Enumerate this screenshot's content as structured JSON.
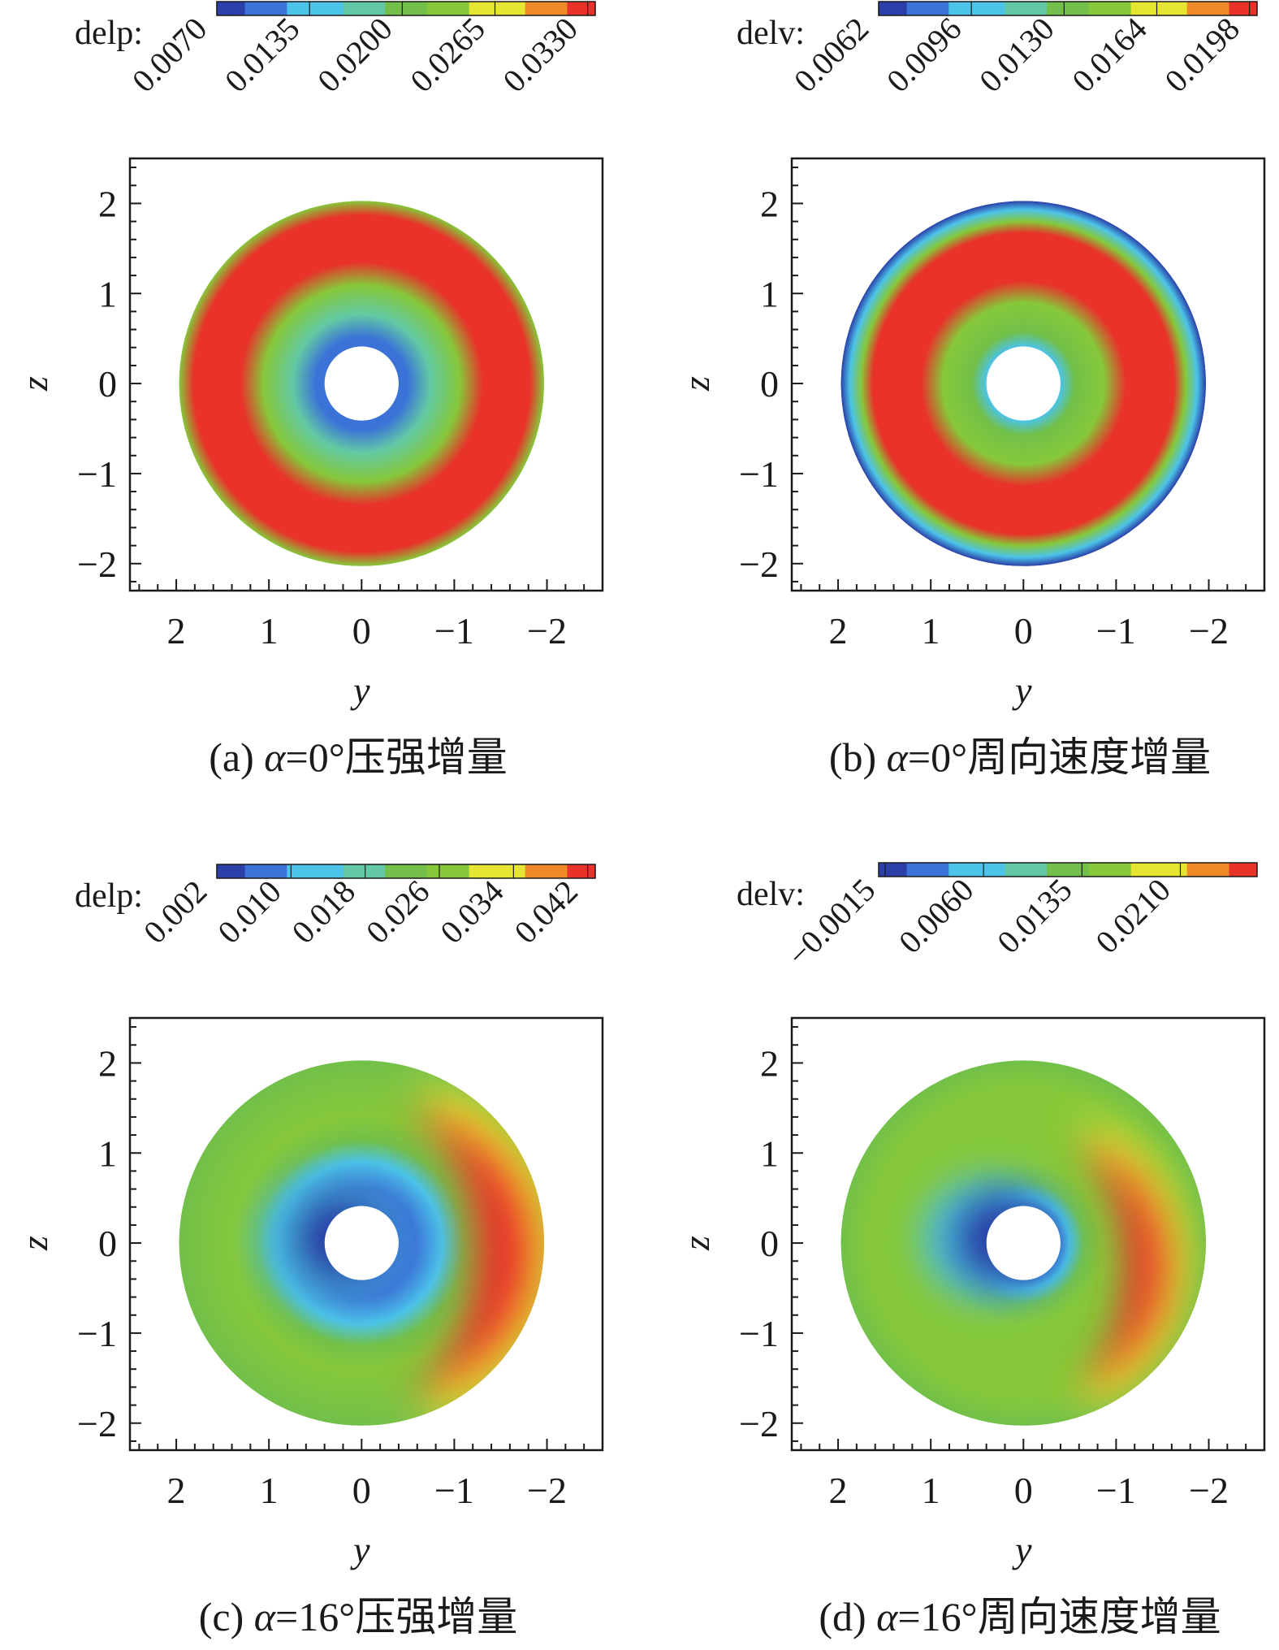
{
  "figure": {
    "colors": {
      "scale": [
        "#2a3fa8",
        "#3a72d8",
        "#4cc3e8",
        "#62c9a4",
        "#72c04a",
        "#86c83a",
        "#e6e632",
        "#f08a28",
        "#e8322a"
      ],
      "axis": "#1a1a1a"
    }
  },
  "chart_data": [
    {
      "type": "contour",
      "title": "(a) α=0°压强增量",
      "title_parts": [
        "(a) ",
        "α",
        "=0°压强增量"
      ],
      "legend_label": "delp:",
      "legend_ticks": [
        "0.0070",
        "0.0135",
        "0.0200",
        "0.0265",
        "0.0330"
      ],
      "xlabel": "y",
      "ylabel": "z",
      "xlim": [
        2.5,
        -2.6
      ],
      "ylim": [
        -2.3,
        2.5
      ],
      "xticks": [
        "2",
        "1",
        "0",
        "−1",
        "−2"
      ],
      "xtick_values": [
        2,
        1,
        0,
        -1,
        -2
      ],
      "yticks": [
        "2",
        "1",
        "0",
        "−1",
        "−2"
      ],
      "ytick_values": [
        2,
        1,
        0,
        -1,
        -2
      ],
      "hub_radius": 0.4,
      "outer_radius": 1.97,
      "pattern": "radial",
      "radial_stops": [
        [
          0,
          1
        ],
        [
          0.06,
          1
        ],
        [
          0.22,
          3
        ],
        [
          0.42,
          5
        ],
        [
          0.58,
          8
        ],
        [
          0.9,
          8
        ],
        [
          1,
          5
        ]
      ]
    },
    {
      "type": "contour",
      "title": "(b) α=0°周向速度增量",
      "title_parts": [
        "(b) ",
        "α",
        "=0°周向速度增量"
      ],
      "legend_label": "delv:",
      "legend_ticks": [
        "0.0062",
        "0.0096",
        "0.0130",
        "0.0164",
        "0.0198"
      ],
      "xlabel": "y",
      "ylabel": "z",
      "xlim": [
        2.5,
        -2.6
      ],
      "ylim": [
        -2.3,
        2.5
      ],
      "xticks": [
        "2",
        "1",
        "0",
        "−1",
        "−2"
      ],
      "xtick_values": [
        2,
        1,
        0,
        -1,
        -2
      ],
      "yticks": [
        "2",
        "1",
        "0",
        "−1",
        "−2"
      ],
      "ytick_values": [
        2,
        1,
        0,
        -1,
        -2
      ],
      "hub_radius": 0.4,
      "outer_radius": 1.97,
      "pattern": "radial",
      "radial_stops": [
        [
          0,
          2
        ],
        [
          0.1,
          4
        ],
        [
          0.3,
          5
        ],
        [
          0.45,
          8
        ],
        [
          0.78,
          8
        ],
        [
          0.86,
          5
        ],
        [
          0.94,
          2
        ],
        [
          1,
          0
        ]
      ]
    },
    {
      "type": "contour",
      "title": "(c) α=16°压强增量",
      "title_parts": [
        "(c) ",
        "α",
        "=16°压强增量"
      ],
      "legend_label": "delp:",
      "legend_ticks": [
        "0.002",
        "0.010",
        "0.018",
        "0.026",
        "0.034",
        "0.042"
      ],
      "xlabel": "y",
      "ylabel": "z",
      "xlim": [
        2.5,
        -2.6
      ],
      "ylim": [
        -2.3,
        2.5
      ],
      "xticks": [
        "2",
        "1",
        "0",
        "−1",
        "−2"
      ],
      "xtick_values": [
        2,
        1,
        0,
        -1,
        -2
      ],
      "yticks": [
        "2",
        "1",
        "0",
        "−1",
        "−2"
      ],
      "ytick_values": [
        2,
        1,
        0,
        -1,
        -2
      ],
      "hub_radius": 0.4,
      "outer_radius": 1.97,
      "pattern": "crescent",
      "base_stops": [
        [
          0,
          1
        ],
        [
          0.12,
          1
        ],
        [
          0.3,
          2
        ],
        [
          0.45,
          4
        ],
        [
          0.62,
          5
        ],
        [
          1,
          4
        ]
      ],
      "crescent": {
        "center": [
          -0.05,
          -0.1
        ],
        "rx": 1.95,
        "ry": 1.95,
        "peak_index": 8
      }
    },
    {
      "type": "contour",
      "title": "(d) α=16°周向速度增量",
      "title_parts": [
        "(d) ",
        "α",
        "=16°周向速度增量"
      ],
      "legend_label": "delv:",
      "legend_ticks": [
        "−0.0015",
        "0.0060",
        "0.0135",
        "0.0210"
      ],
      "xlabel": "y",
      "ylabel": "z",
      "xlim": [
        2.5,
        -2.6
      ],
      "ylim": [
        -2.3,
        2.5
      ],
      "xticks": [
        "2",
        "1",
        "0",
        "−1",
        "−2"
      ],
      "xtick_values": [
        2,
        1,
        0,
        -1,
        -2
      ],
      "yticks": [
        "2",
        "1",
        "0",
        "−1",
        "−2"
      ],
      "ytick_values": [
        2,
        1,
        0,
        -1,
        -2
      ],
      "hub_radius": 0.4,
      "outer_radius": 1.97,
      "pattern": "crescent",
      "base_stops": [
        [
          0,
          1
        ],
        [
          0.06,
          2
        ],
        [
          0.16,
          4
        ],
        [
          0.3,
          5
        ],
        [
          0.8,
          5
        ],
        [
          1,
          4
        ]
      ],
      "crescent": {
        "center": [
          -0.15,
          -0.25
        ],
        "rx": 1.45,
        "ry": 1.65,
        "peak_index": 8
      }
    }
  ]
}
